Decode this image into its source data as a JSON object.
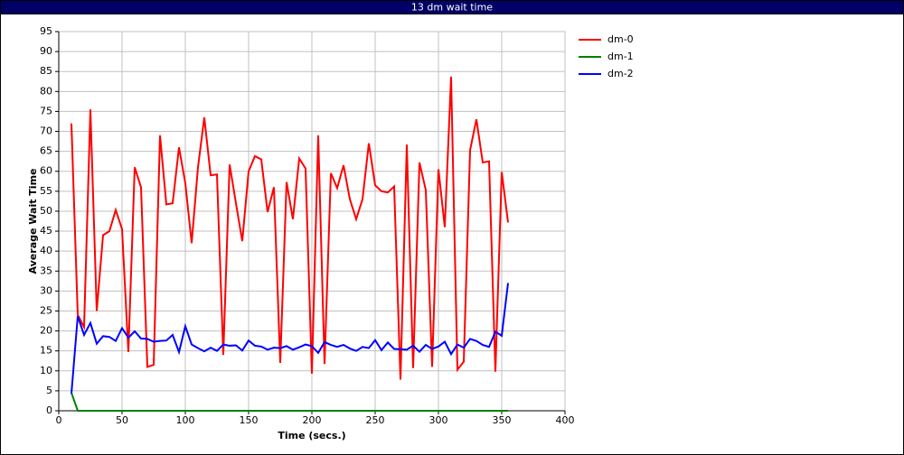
{
  "window_title": "13 dm wait time",
  "chart_data": {
    "type": "line",
    "xlabel": "Time (secs.)",
    "ylabel": "Average Wait Time",
    "x": [
      10,
      15,
      20,
      25,
      30,
      35,
      40,
      45,
      50,
      55,
      60,
      65,
      70,
      75,
      80,
      85,
      90,
      95,
      100,
      105,
      110,
      115,
      120,
      125,
      130,
      135,
      140,
      145,
      150,
      155,
      160,
      165,
      170,
      175,
      180,
      185,
      190,
      195,
      200,
      205,
      210,
      215,
      220,
      225,
      230,
      235,
      240,
      245,
      250,
      255,
      260,
      265,
      270,
      275,
      280,
      285,
      290,
      295,
      300,
      305,
      310,
      315,
      320,
      325,
      330,
      335,
      340,
      345,
      350,
      355
    ],
    "series": [
      {
        "name": "dm-0",
        "color": "#ff0000",
        "values": [
          72,
          24,
          21,
          75.5,
          25,
          44,
          45,
          50.3,
          45.5,
          14.7,
          61,
          56,
          11,
          11.5,
          69,
          51.7,
          52,
          66,
          57,
          42,
          61,
          73.5,
          59,
          59.2,
          14,
          61.7,
          52,
          42.5,
          60,
          63.8,
          63,
          49.8,
          56,
          12,
          57.3,
          48,
          63.2,
          60.7,
          9.3,
          69,
          11.7,
          59.5,
          55.8,
          61.5,
          53,
          48,
          53,
          67,
          56.5,
          55,
          54.7,
          56.2,
          7.8,
          66.7,
          10.7,
          62.2,
          55.3,
          11,
          60.5,
          46,
          83.7,
          10.3,
          12.3,
          65.3,
          73,
          62.2,
          62.5,
          9.8,
          59.8,
          47.2
        ]
      },
      {
        "name": "dm-1",
        "color": "#008000",
        "values": [
          4.5,
          0,
          0,
          0,
          0,
          0,
          0,
          0,
          0,
          0,
          0,
          0,
          0,
          0,
          0,
          0,
          0,
          0,
          0,
          0,
          0,
          0,
          0,
          0,
          0,
          0,
          0,
          0,
          0,
          0,
          0,
          0,
          0,
          0,
          0,
          0,
          0,
          0,
          0,
          0,
          0,
          0,
          0,
          0,
          0,
          0,
          0,
          0,
          0,
          0,
          0,
          0,
          0,
          0,
          0,
          0,
          0,
          0,
          0,
          0,
          0,
          0,
          0,
          0,
          0,
          0,
          0,
          0,
          0,
          0
        ]
      },
      {
        "name": "dm-2",
        "color": "#0000ff",
        "values": [
          4.3,
          23.7,
          19,
          22,
          16.8,
          18.7,
          18.5,
          17.5,
          20.7,
          18.3,
          19.9,
          18.1,
          18,
          17.3,
          17.5,
          17.6,
          19,
          14.7,
          21.2,
          16.6,
          15.7,
          14.9,
          15.8,
          15,
          16.6,
          16.3,
          16.4,
          15.1,
          17.6,
          16.3,
          16.1,
          15.3,
          15.8,
          15.7,
          16.2,
          15.3,
          15.9,
          16.6,
          16.2,
          14.5,
          17.2,
          16.5,
          16,
          16.5,
          15.6,
          15,
          16,
          15.7,
          17.7,
          15.2,
          17.1,
          15.5,
          15.4,
          15.3,
          16.3,
          14.8,
          16.5,
          15.5,
          16.1,
          17.3,
          14.2,
          16.6,
          15.8,
          18,
          17.5,
          16.5,
          16,
          19.8,
          18.8,
          32
        ]
      }
    ],
    "xlim": [
      0,
      400
    ],
    "xticks": [
      0,
      50,
      100,
      150,
      200,
      250,
      300,
      350,
      400
    ],
    "ylim": [
      0,
      95
    ],
    "yticks": [
      0,
      5,
      10,
      15,
      20,
      25,
      30,
      35,
      40,
      45,
      50,
      55,
      60,
      65,
      70,
      75,
      80,
      85,
      90,
      95
    ],
    "grid": true,
    "legend": "right"
  }
}
